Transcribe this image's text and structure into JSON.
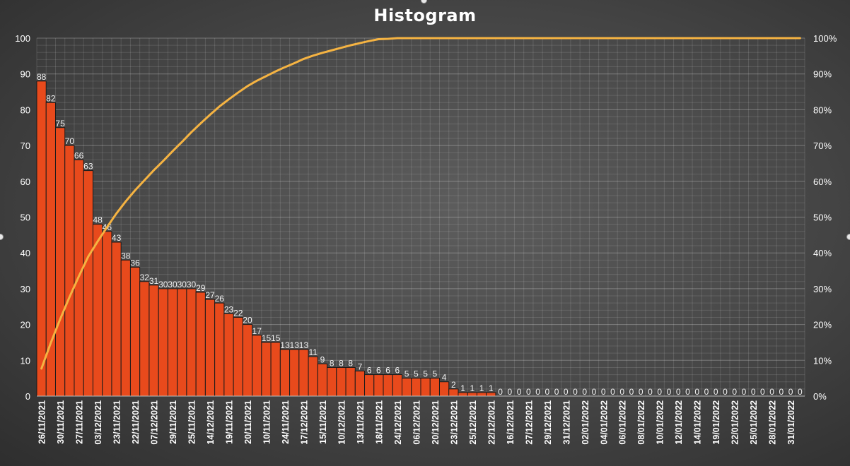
{
  "chart_data": {
    "type": "bar",
    "title": "Histogram",
    "xlabel": "",
    "ylabel": "",
    "ylim": [
      0,
      100
    ],
    "yticks": [
      0,
      10,
      20,
      30,
      40,
      50,
      60,
      70,
      80,
      90,
      100
    ],
    "y2lim": [
      0,
      100
    ],
    "y2ticks": [
      "0%",
      "10%",
      "20%",
      "30%",
      "40%",
      "50%",
      "60%",
      "70%",
      "80%",
      "90%",
      "100%"
    ],
    "grid": true,
    "legend": "none",
    "categories": [
      "26/11/2021",
      "",
      "30/11/2021",
      "",
      "27/11/2021",
      "",
      "03/12/2021",
      "",
      "23/11/2021",
      "",
      "22/11/2021",
      "",
      "07/12/2021",
      "",
      "29/11/2021",
      "",
      "25/11/2021",
      "",
      "14/12/2021",
      "",
      "19/11/2021",
      "",
      "20/11/2021",
      "",
      "10/11/2021",
      "",
      "24/11/2021",
      "",
      "17/12/2021",
      "",
      "15/11/2021",
      "",
      "10/12/2021",
      "",
      "13/11/2021",
      "",
      "18/11/2021",
      "",
      "24/12/2021",
      "",
      "06/12/2021",
      "",
      "20/12/2021",
      "",
      "23/12/2021",
      "",
      "25/12/2021",
      "",
      "22/12/2021",
      "",
      "16/12/2021",
      "",
      "27/12/2021",
      "",
      "29/12/2021",
      "",
      "31/12/2021",
      "",
      "02/01/2022",
      "",
      "04/01/2022",
      "",
      "06/01/2022",
      "",
      "08/01/2022",
      "",
      "10/01/2022",
      "",
      "12/01/2022",
      "",
      "14/01/2022",
      "",
      "19/01/2022",
      "",
      "22/01/2022",
      "",
      "25/01/2022",
      "",
      "28/01/2022",
      "",
      "31/01/2022",
      ""
    ],
    "series": [
      {
        "type": "bar",
        "color": "#e84a1c",
        "values": [
          88,
          82,
          75,
          70,
          66,
          63,
          48,
          46,
          43,
          38,
          36,
          32,
          31,
          30,
          30,
          30,
          30,
          29,
          27,
          26,
          23,
          22,
          20,
          17,
          15,
          15,
          13,
          13,
          13,
          11,
          9,
          8,
          8,
          8,
          7,
          6,
          6,
          6,
          6,
          5,
          5,
          5,
          5,
          4,
          2,
          1,
          1,
          1,
          1,
          0,
          0,
          0,
          0,
          0,
          0,
          0,
          0,
          0,
          0,
          0,
          0,
          0,
          0,
          0,
          0,
          0,
          0,
          0,
          0,
          0,
          0,
          0,
          0,
          0,
          0,
          0,
          0,
          0,
          0,
          0,
          0,
          0
        ]
      },
      {
        "type": "line",
        "axis": "secondary",
        "color": "#f5b342",
        "values": [
          7.7,
          14.9,
          21.5,
          27.7,
          33.5,
          39.0,
          43.2,
          47.2,
          51.0,
          54.4,
          57.5,
          60.3,
          63.1,
          65.7,
          68.4,
          71.0,
          73.7,
          76.2,
          78.6,
          80.9,
          82.9,
          84.8,
          86.6,
          88.1,
          89.4,
          90.7,
          91.9,
          93.0,
          94.2,
          95.1,
          95.9,
          96.6,
          97.3,
          98.0,
          98.6,
          99.2,
          99.7,
          99.8,
          100,
          100,
          100,
          100,
          100,
          100,
          100,
          100,
          100,
          100,
          100,
          100,
          100,
          100,
          100,
          100,
          100,
          100,
          100,
          100,
          100,
          100,
          100,
          100,
          100,
          100,
          100,
          100,
          100,
          100,
          100,
          100,
          100,
          100,
          100,
          100,
          100,
          100,
          100,
          100,
          100,
          100,
          100,
          100
        ]
      }
    ]
  }
}
